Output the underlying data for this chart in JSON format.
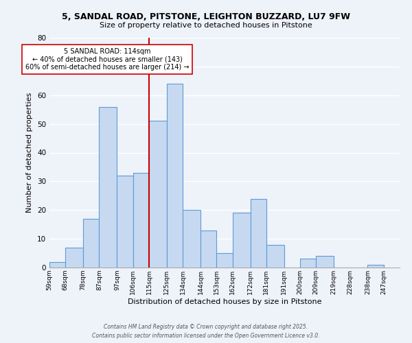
{
  "title": "5, SANDAL ROAD, PITSTONE, LEIGHTON BUZZARD, LU7 9FW",
  "subtitle": "Size of property relative to detached houses in Pitstone",
  "xlabel": "Distribution of detached houses by size in Pitstone",
  "ylabel": "Number of detached properties",
  "bin_labels": [
    "59sqm",
    "68sqm",
    "78sqm",
    "87sqm",
    "97sqm",
    "106sqm",
    "115sqm",
    "125sqm",
    "134sqm",
    "144sqm",
    "153sqm",
    "162sqm",
    "172sqm",
    "181sqm",
    "191sqm",
    "200sqm",
    "209sqm",
    "219sqm",
    "228sqm",
    "238sqm",
    "247sqm"
  ],
  "bin_edges": [
    59,
    68,
    78,
    87,
    97,
    106,
    115,
    125,
    134,
    144,
    153,
    162,
    172,
    181,
    191,
    200,
    209,
    219,
    228,
    238,
    247
  ],
  "values": [
    2,
    7,
    17,
    56,
    32,
    33,
    51,
    64,
    20,
    13,
    5,
    19,
    24,
    8,
    0,
    3,
    4,
    0,
    0,
    1
  ],
  "bar_color": "#c6d9f1",
  "bar_edge_color": "#5b9bd5",
  "vline_x": 115,
  "vline_color": "#cc0000",
  "annotation_title": "5 SANDAL ROAD: 114sqm",
  "annotation_line1": "← 40% of detached houses are smaller (143)",
  "annotation_line2": "60% of semi-detached houses are larger (214) →",
  "annotation_box_color": "#ffffff",
  "annotation_box_edge": "#cc0000",
  "ylim": [
    0,
    80
  ],
  "yticks": [
    0,
    10,
    20,
    30,
    40,
    50,
    60,
    70,
    80
  ],
  "footer1": "Contains HM Land Registry data © Crown copyright and database right 2025.",
  "footer2": "Contains public sector information licensed under the Open Government Licence v3.0.",
  "bg_color": "#eef2f9",
  "grid_color": "#ffffff",
  "spine_color": "#aaaaaa"
}
